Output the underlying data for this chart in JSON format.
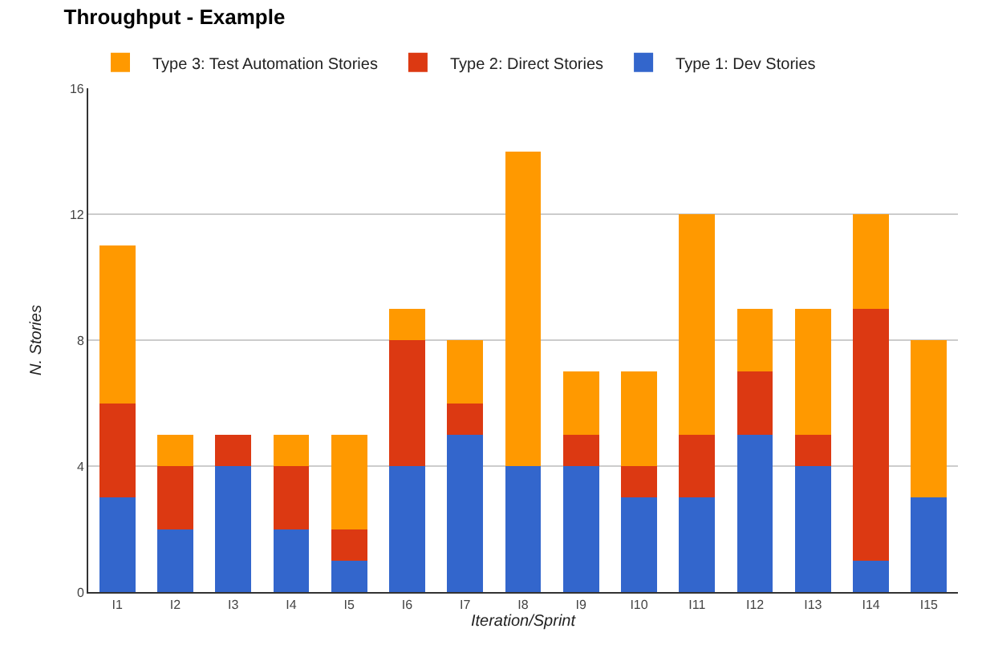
{
  "chart_data": {
    "type": "bar",
    "title": "Throughput - Example",
    "xlabel": "Iteration/Sprint",
    "ylabel": "N. Stories",
    "categories": [
      "I1",
      "I2",
      "I3",
      "I4",
      "I5",
      "I6",
      "I7",
      "I8",
      "I9",
      "I10",
      "I11",
      "I12",
      "I13",
      "I14",
      "I15"
    ],
    "stacked": true,
    "series": [
      {
        "name": "Type 1: Dev Stories",
        "color": "#3366cc",
        "values": [
          3,
          2,
          4,
          2,
          1,
          4,
          5,
          4,
          4,
          3,
          3,
          5,
          4,
          1,
          3
        ]
      },
      {
        "name": "Type 2: Direct Stories",
        "color": "#dc3912",
        "values": [
          3,
          2,
          1,
          2,
          1,
          4,
          1,
          0,
          1,
          1,
          2,
          2,
          1,
          8,
          0
        ]
      },
      {
        "name": "Type 3: Test Automation Stories",
        "color": "#ff9900",
        "values": [
          5,
          1,
          0,
          1,
          3,
          1,
          2,
          10,
          2,
          3,
          7,
          2,
          4,
          3,
          5
        ]
      }
    ],
    "ylim": [
      0,
      16
    ],
    "yticks": [
      0,
      4,
      8,
      12,
      16
    ],
    "grid": "y",
    "legend": "top left"
  }
}
